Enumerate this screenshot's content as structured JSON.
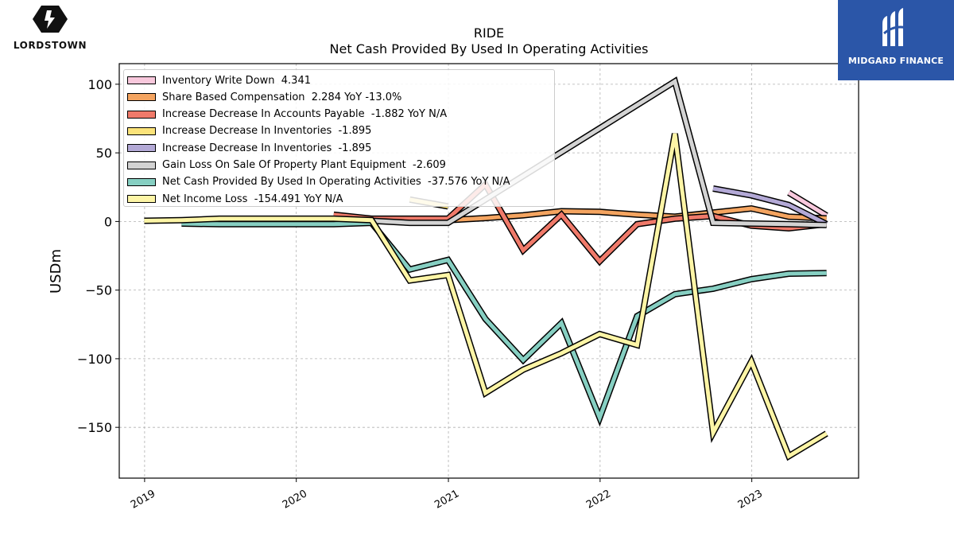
{
  "header": {
    "ticker": "RIDE",
    "subtitle": "Net Cash Provided By Used In Operating Activities"
  },
  "brands": {
    "left_name": "LORDSTOWN",
    "right_name": "MIDGARD FINANCE",
    "right_bg_color": "#2b56a8"
  },
  "chart_data": {
    "type": "line",
    "title": "RIDE",
    "subtitle": "Net Cash Provided By Used In Operating Activities",
    "xlabel": "",
    "ylabel": "USDm",
    "xlim": [
      "2018-11-01",
      "2023-09-15"
    ],
    "ylim": [
      -187,
      115
    ],
    "x_ticks": [
      "2019",
      "2020",
      "2021",
      "2022",
      "2023"
    ],
    "y_ticks": [
      100,
      50,
      0,
      -50,
      -100,
      -150
    ],
    "y_tick_labels": [
      "100",
      "50",
      "0",
      "−50",
      "−100",
      "−150"
    ],
    "grid": true,
    "legend_position": "upper-left",
    "series": [
      {
        "name": "Inventory Write Down",
        "legend": "Inventory Write Down  4.341",
        "color": "#f8c8dc",
        "points": [
          [
            "2023-03-31",
            21.0
          ],
          [
            "2023-06-30",
            4.341
          ]
        ]
      },
      {
        "name": "Share Based Compensation",
        "legend": "Share Based Compensation  2.284 YoY -13.0%",
        "color": "#f4a460",
        "points": [
          [
            "2020-06-30",
            0.5
          ],
          [
            "2020-09-30",
            1.5
          ],
          [
            "2020-12-31",
            1.0
          ],
          [
            "2021-03-31",
            2.5
          ],
          [
            "2021-06-30",
            4.5
          ],
          [
            "2021-09-30",
            7.5
          ],
          [
            "2021-12-31",
            7.0
          ],
          [
            "2022-03-31",
            5.0
          ],
          [
            "2022-06-30",
            3.5
          ],
          [
            "2022-09-30",
            6.5
          ],
          [
            "2022-12-31",
            9.5
          ],
          [
            "2023-03-31",
            3.5
          ],
          [
            "2023-06-30",
            2.284
          ]
        ]
      },
      {
        "name": "Increase Decrease In Accounts Payable",
        "legend": "Increase Decrease In Accounts Payable  -1.882 YoY N/A",
        "color": "#f07a6a",
        "points": [
          [
            "2020-03-31",
            5.0
          ],
          [
            "2020-06-30",
            2.0
          ],
          [
            "2020-09-30",
            2.0
          ],
          [
            "2020-12-31",
            2.0
          ],
          [
            "2021-03-31",
            27.0
          ],
          [
            "2021-06-30",
            -21.0
          ],
          [
            "2021-09-30",
            5.0
          ],
          [
            "2021-12-31",
            -29.0
          ],
          [
            "2022-03-31",
            -2.0
          ],
          [
            "2022-06-30",
            2.0
          ],
          [
            "2022-09-30",
            4.0
          ],
          [
            "2022-12-31",
            -3.0
          ],
          [
            "2023-03-31",
            -5.0
          ],
          [
            "2023-06-30",
            -1.882
          ]
        ]
      },
      {
        "name": "Increase Decrease In Inventories",
        "legend": "Increase Decrease In Inventories  -1.895",
        "color": "#fbe37a",
        "points": [
          [
            "2020-09-30",
            16.0
          ],
          [
            "2020-12-31",
            11.0
          ]
        ]
      },
      {
        "name": "Increase Decrease In Inventories",
        "legend": "Increase Decrease In Inventories  -1.895",
        "color": "#b3a9d6",
        "points": [
          [
            "2022-09-30",
            24.0
          ],
          [
            "2022-12-31",
            19.0
          ],
          [
            "2023-03-31",
            12.0
          ],
          [
            "2023-06-30",
            -1.895
          ]
        ]
      },
      {
        "name": "Gain Loss On Sale Of Property Plant Equipment",
        "legend": "Gain Loss On Sale Of Property Plant Equipment  -2.609",
        "color": "#d3d3d3",
        "points": [
          [
            "2020-06-30",
            0.5
          ],
          [
            "2020-09-30",
            -1.0
          ],
          [
            "2020-12-31",
            -1.0
          ],
          [
            "2022-06-30",
            102.0
          ],
          [
            "2022-09-30",
            -1.0
          ],
          [
            "2022-12-31",
            -1.5
          ],
          [
            "2023-03-31",
            -2.0
          ],
          [
            "2023-06-30",
            -2.609
          ]
        ]
      },
      {
        "name": "Net Cash Provided By Used In Operating Activities",
        "legend": "Net Cash Provided By Used In Operating Activities  -37.576 YoY N/A",
        "color": "#86cfc2",
        "points": [
          [
            "2019-03-31",
            -1.5
          ],
          [
            "2019-06-30",
            -2.0
          ],
          [
            "2019-09-30",
            -2.0
          ],
          [
            "2019-12-31",
            -2.0
          ],
          [
            "2020-03-31",
            -2.0
          ],
          [
            "2020-06-30",
            -1.0
          ],
          [
            "2020-09-30",
            -35.0
          ],
          [
            "2020-12-31",
            -28.0
          ],
          [
            "2021-03-31",
            -71.0
          ],
          [
            "2021-06-30",
            -101.0
          ],
          [
            "2021-09-30",
            -74.0
          ],
          [
            "2021-12-31",
            -143.0
          ],
          [
            "2022-03-31",
            -69.0
          ],
          [
            "2022-06-30",
            -53.0
          ],
          [
            "2022-09-30",
            -49.0
          ],
          [
            "2022-12-31",
            -42.0
          ],
          [
            "2023-03-31",
            -38.0
          ],
          [
            "2023-06-30",
            -37.576
          ]
        ]
      },
      {
        "name": "Net Income Loss",
        "legend": "Net Income Loss  -154.491 YoY N/A",
        "color": "#fdf5a6",
        "points": [
          [
            "2018-12-31",
            0.5
          ],
          [
            "2019-03-31",
            1.0
          ],
          [
            "2019-06-30",
            2.0
          ],
          [
            "2019-09-30",
            2.0
          ],
          [
            "2019-12-31",
            2.0
          ],
          [
            "2020-03-31",
            2.0
          ],
          [
            "2020-06-30",
            1.0
          ],
          [
            "2020-09-30",
            -43.0
          ],
          [
            "2020-12-31",
            -39.0
          ],
          [
            "2021-03-31",
            -125.0
          ],
          [
            "2021-06-30",
            -108.0
          ],
          [
            "2021-09-30",
            -96.0
          ],
          [
            "2021-12-31",
            -82.0
          ],
          [
            "2022-03-31",
            -90.0
          ],
          [
            "2022-06-30",
            64.0
          ],
          [
            "2022-09-30",
            -154.0
          ],
          [
            "2022-12-31",
            -102.0
          ],
          [
            "2023-03-31",
            -171.0
          ],
          [
            "2023-06-30",
            -154.491
          ]
        ]
      }
    ]
  }
}
